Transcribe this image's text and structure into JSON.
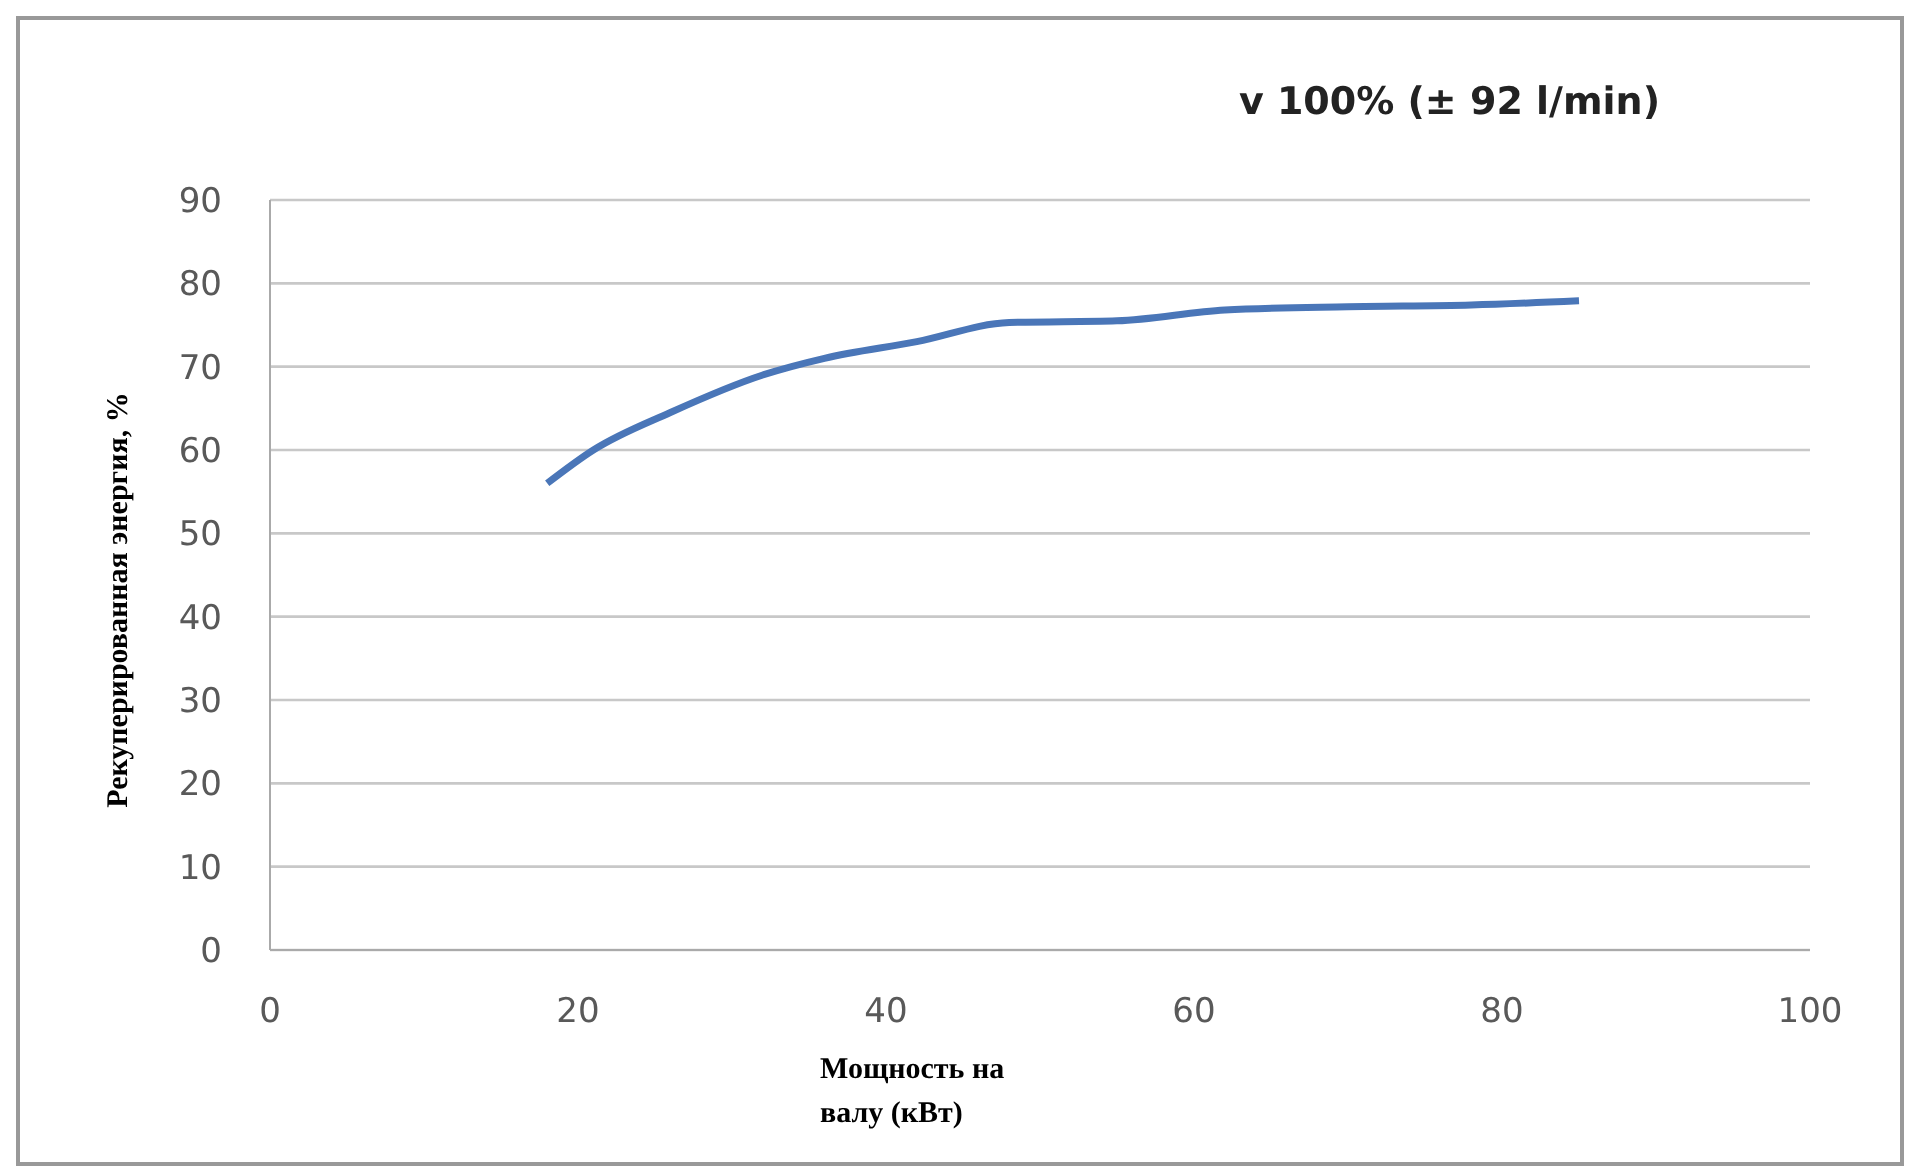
{
  "chart_data": {
    "type": "line",
    "title": "v 100% (± 92 l/min)",
    "xlabel": "Мощность на валу (кВт)",
    "ylabel": "Рекуперированная энергия, %",
    "x": [
      18,
      21,
      26,
      32,
      36,
      42,
      48,
      55,
      62,
      70,
      78,
      85
    ],
    "series": [
      {
        "color": "#4a76b8",
        "values": [
          56,
          60,
          64.5,
          69,
          71,
          73,
          75.3,
          75.5,
          76.8,
          77.2,
          77.4,
          77.9
        ]
      }
    ],
    "xlim": [
      0,
      100
    ],
    "xticks": [
      0,
      20,
      40,
      60,
      80,
      100
    ],
    "ylim": [
      0,
      90
    ],
    "yticks": [
      0,
      10,
      20,
      30,
      40,
      50,
      60,
      70,
      80,
      90
    ],
    "grid": "y",
    "legend": false,
    "marker": "none",
    "line_style": "solid"
  }
}
